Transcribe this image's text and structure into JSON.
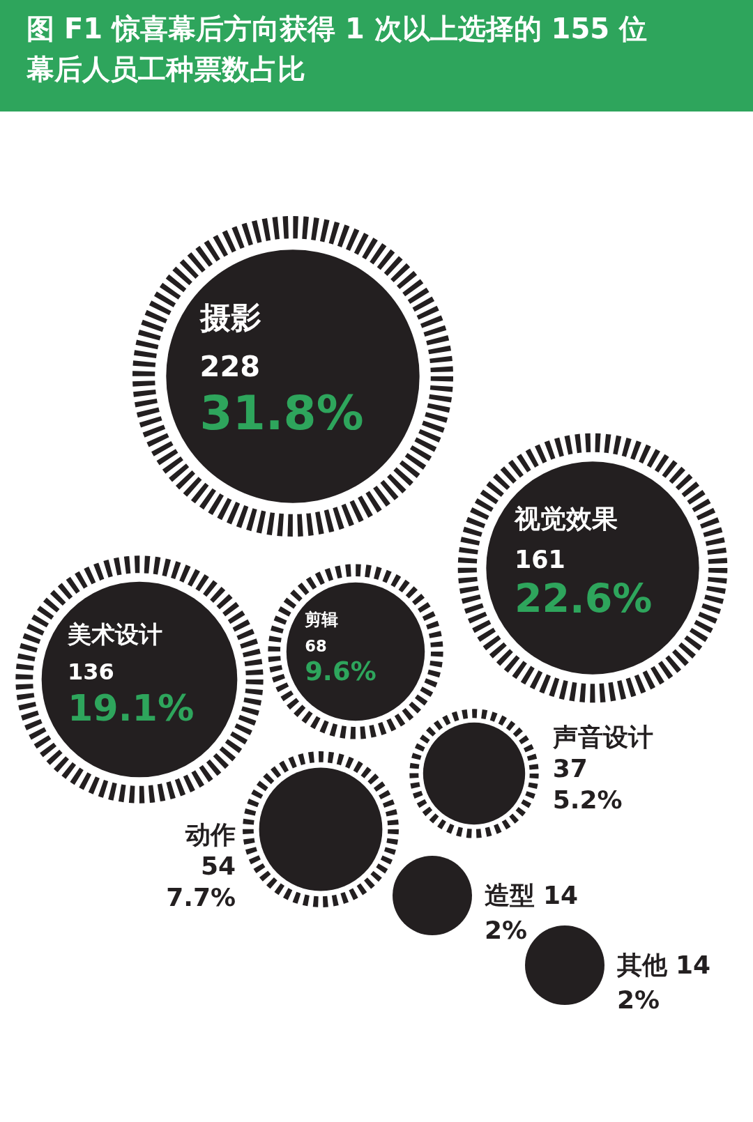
{
  "chart_data": {
    "type": "other",
    "title": "图 F1 惊喜幕后方向获得 1 次以上选择的 155 位幕后人员工种票数占比",
    "categories": [
      "摄影",
      "视觉效果",
      "美术设计",
      "剪辑",
      "动作",
      "声音设计",
      "造型",
      "其他"
    ],
    "series": [
      {
        "values": [
          228,
          161,
          136,
          68,
          54,
          37,
          14,
          14
        ],
        "value_labels": [
          "228",
          "161",
          "136",
          "68",
          "54",
          "37",
          "14",
          "14"
        ],
        "color": "#231f20"
      },
      {
        "values": [
          31.8,
          22.6,
          19.1,
          9.6,
          7.7,
          5.2,
          2,
          2
        ],
        "value_labels": [
          "31.8%",
          "22.6%",
          "19.1%",
          "9.6%",
          "7.7%",
          "5.2%",
          "2%",
          "2%"
        ],
        "colors": [
          "#2ea55c",
          "#2ea55c",
          "#2ea55c",
          "#2ea55c",
          "#231f20",
          "#231f20",
          "#231f20",
          "#231f20"
        ]
      }
    ]
  }
}
